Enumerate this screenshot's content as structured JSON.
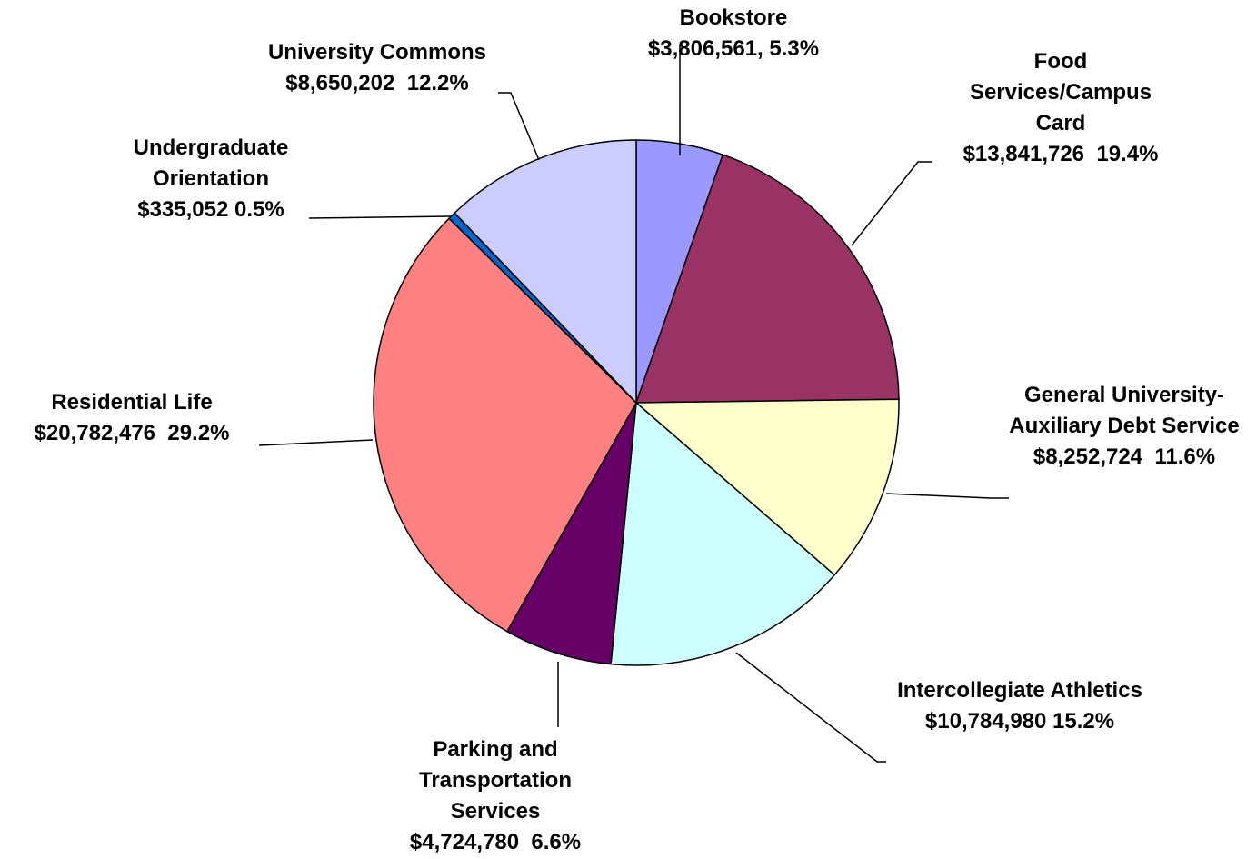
{
  "chart_data": {
    "type": "pie",
    "categories": [
      "Bookstore",
      "Food Services/Campus Card",
      "General University-Auxiliary Debt Service",
      "Intercollegiate Athletics",
      "Parking and Transportation Services",
      "Residential Life",
      "Undergraduate Orientation",
      "University Commons"
    ],
    "values": [
      3806561,
      13841726,
      8252724,
      10784980,
      4724780,
      20782476,
      335052,
      8650202
    ],
    "value_labels": [
      "$3,806,561, 5.3%",
      "$13,841,726  19.4%",
      "$8,252,724  11.6%",
      "$10,784,980 15.2%",
      "$4,724,780  6.6%",
      "$20,782,476  29.2%",
      "$335,052 0.5%",
      "$8,650,202  12.2%"
    ],
    "colors": [
      "#9999ff",
      "#993366",
      "#ffffcc",
      "#ccffff",
      "#660066",
      "#ff8080",
      "#0066cc",
      "#ccccff"
    ]
  }
}
